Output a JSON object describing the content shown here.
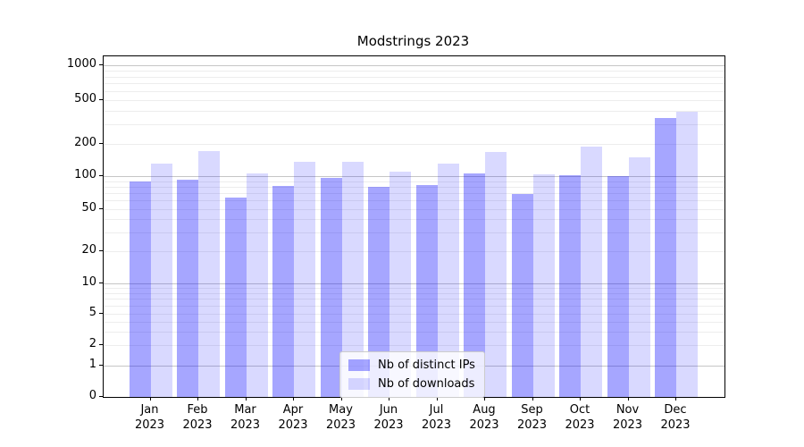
{
  "title": "Modstrings 2023",
  "chart_data": {
    "type": "bar",
    "title": "Modstrings 2023",
    "year": "2023",
    "months": [
      "Jan",
      "Feb",
      "Mar",
      "Apr",
      "May",
      "Jun",
      "Jul",
      "Aug",
      "Sep",
      "Oct",
      "Nov",
      "Dec"
    ],
    "categories": [
      "Jan 2023",
      "Feb 2023",
      "Mar 2023",
      "Apr 2023",
      "May 2023",
      "Jun 2023",
      "Jul 2023",
      "Aug 2023",
      "Sep 2023",
      "Oct 2023",
      "Nov 2023",
      "Dec 2023"
    ],
    "series": [
      {
        "name": "Nb of distinct IPs",
        "color": "rgba(0,0,255,0.35)",
        "values": [
          90,
          93,
          64,
          82,
          97,
          80,
          83,
          107,
          69,
          101,
          100,
          345
        ]
      },
      {
        "name": "Nb of downloads",
        "color": "rgba(0,0,255,0.15)",
        "values": [
          130,
          170,
          105,
          135,
          135,
          110,
          130,
          168,
          104,
          190,
          150,
          390
        ]
      }
    ],
    "xlabel": "",
    "ylabel": "",
    "yscale": "symlog",
    "ylim": [
      0,
      1200
    ],
    "y_ticks": [
      0,
      1,
      2,
      5,
      10,
      20,
      50,
      100,
      200,
      500,
      1000
    ],
    "y_tick_labels": [
      "0",
      "1",
      "2",
      "5",
      "10",
      "20",
      "50",
      "100",
      "200",
      "500",
      "1000"
    ],
    "minor_gridline_values": [
      2,
      3,
      4,
      5,
      6,
      7,
      8,
      9,
      20,
      30,
      40,
      50,
      60,
      70,
      80,
      90,
      200,
      300,
      400,
      500,
      600,
      700,
      800,
      900
    ],
    "major_gridline_values": [
      1,
      10,
      100,
      1000
    ],
    "grid": true,
    "legend_position": "lower center"
  }
}
